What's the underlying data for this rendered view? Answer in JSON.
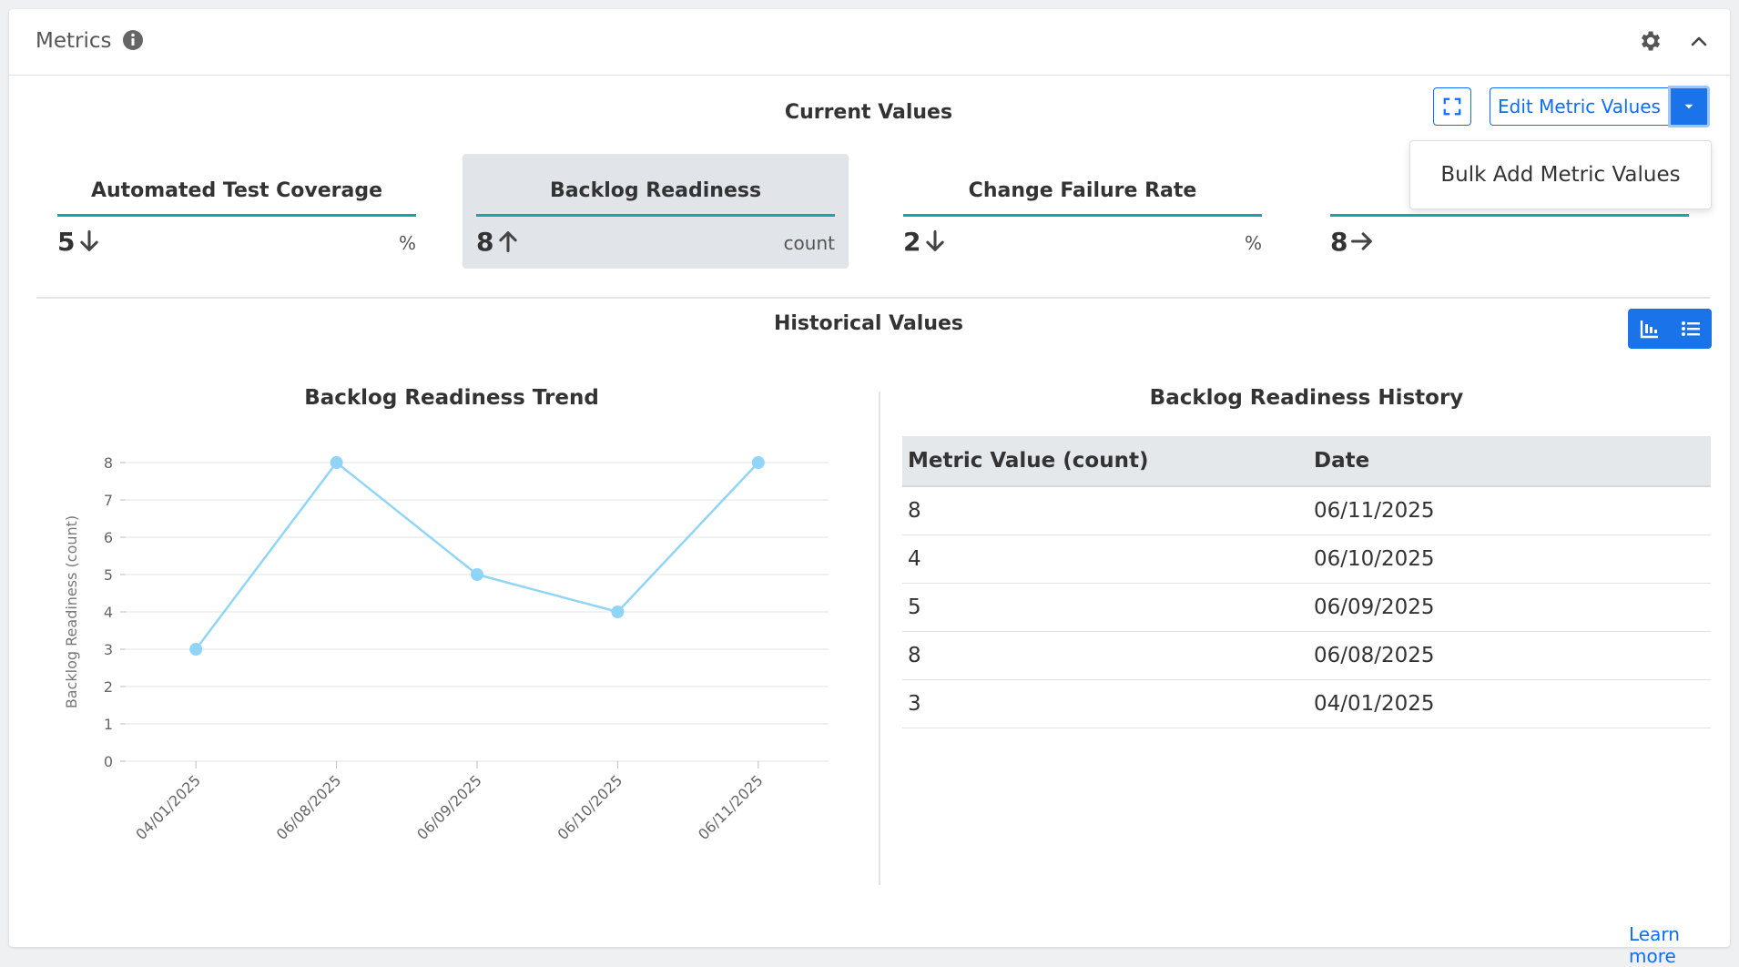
{
  "panel": {
    "title": "Metrics",
    "learn_more": "Learn more"
  },
  "current": {
    "title": "Current Values",
    "edit_label": "Edit Metric Values",
    "dropdown_items": [
      "Bulk Add Metric Values"
    ],
    "cards": [
      {
        "name": "Automated Test Coverage",
        "value": "5",
        "trend": "down",
        "unit": "%"
      },
      {
        "name": "Backlog Readiness",
        "value": "8",
        "trend": "up",
        "unit": "count",
        "selected": true
      },
      {
        "name": "Change Failure Rate",
        "value": "2",
        "trend": "down",
        "unit": "%"
      },
      {
        "name": "",
        "value": "8",
        "trend": "right",
        "unit": ""
      }
    ]
  },
  "historical": {
    "title": "Historical Values",
    "chart_title": "Backlog Readiness Trend",
    "table_title": "Backlog Readiness History",
    "columns": [
      "Metric Value (count)",
      "Date"
    ],
    "rows": [
      [
        "8",
        "06/11/2025"
      ],
      [
        "4",
        "06/10/2025"
      ],
      [
        "5",
        "06/09/2025"
      ],
      [
        "8",
        "06/08/2025"
      ],
      [
        "3",
        "04/01/2025"
      ]
    ]
  },
  "colors": {
    "accent": "#1a73e8",
    "teal_rule": "#1aa3a8",
    "series_line": "#90d5f8",
    "selected_card": "#e1e4e8"
  },
  "chart_data": {
    "type": "line",
    "title": "Backlog Readiness Trend",
    "xlabel": "",
    "ylabel": "Backlog Readiness (count)",
    "categories": [
      "04/01/2025",
      "06/08/2025",
      "06/09/2025",
      "06/10/2025",
      "06/11/2025"
    ],
    "series": [
      {
        "values": [
          3,
          8,
          5,
          4,
          8
        ]
      }
    ],
    "ylim": [
      0,
      8
    ],
    "yticks": [
      0,
      1,
      2,
      3,
      4,
      5,
      6,
      7,
      8
    ],
    "grid": true,
    "legend": "none"
  }
}
